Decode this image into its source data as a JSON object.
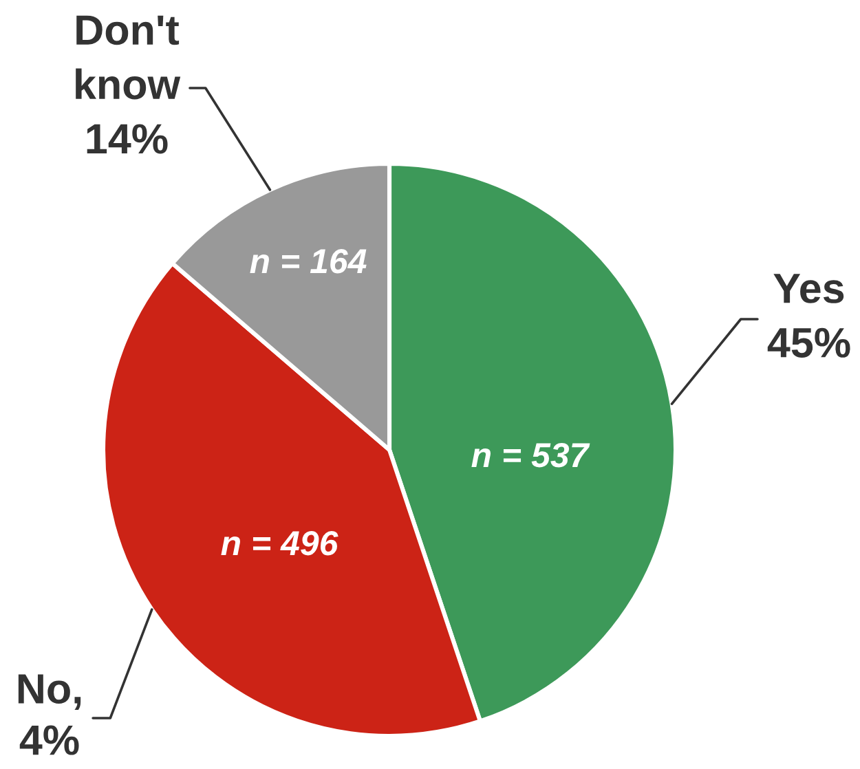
{
  "chart_data": {
    "type": "pie",
    "categories": [
      "Yes\n45%",
      "No,\n4%",
      "Don't\nknow\n14%"
    ],
    "values": [
      537,
      496,
      164
    ],
    "colors": [
      "#3d9959",
      "#cc2316",
      "#999999"
    ],
    "value_labels": [
      "n = 537",
      "n = 496",
      "n = 164"
    ]
  }
}
